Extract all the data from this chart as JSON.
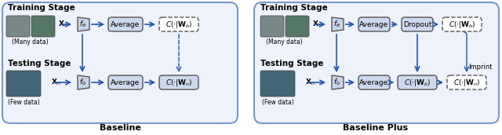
{
  "fig_width": 6.4,
  "fig_height": 1.72,
  "bg_color": "#ffffff",
  "panel_bg": "#eef2fa",
  "box_fill_solid": "#ccd8ee",
  "arrow_color": "#2255aa",
  "arrow_dashed_color": "#2255aa",
  "left_panel": {
    "title_train": "Training Stage",
    "title_test": "Testing Stage",
    "label_many": "(Many data)",
    "label_few": "(Few data)",
    "caption": "Baseline",
    "train_x": "X_b",
    "test_x": "X_n"
  },
  "right_panel": {
    "title_train": "Training Stage",
    "title_test": "Testing Stage",
    "label_many": "(Many data)",
    "label_few": "(Few data)",
    "caption": "Baseline Plus",
    "train_x": "X_b",
    "test_x": "X_n",
    "imprint_label": "Imprint"
  }
}
